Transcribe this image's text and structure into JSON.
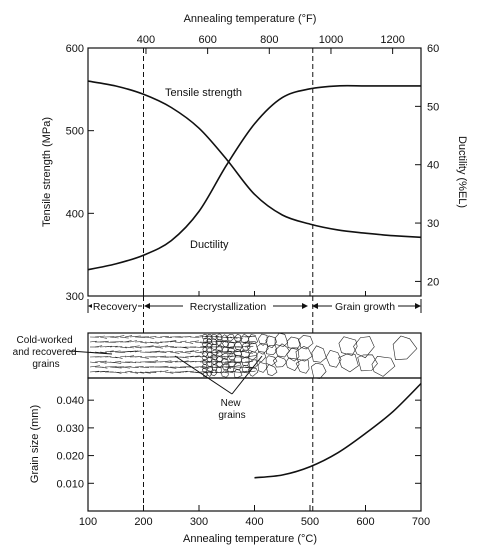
{
  "chart_data": {
    "type": "line",
    "title": "",
    "top_axis": {
      "label": "Annealing temperature (°F)",
      "ticks": [
        400,
        600,
        800,
        1000,
        1200
      ]
    },
    "bottom_axis": {
      "label": "Annealing temperature (°C)",
      "range": [
        100,
        700
      ],
      "ticks": [
        100,
        200,
        300,
        400,
        500,
        600,
        700
      ]
    },
    "upper_left_axis": {
      "label": "Tensile strength (MPa)",
      "range": [
        300,
        600
      ],
      "ticks": [
        300,
        400,
        500,
        600
      ]
    },
    "upper_right_axis": {
      "label": "Ductility (%EL)",
      "range": [
        17.5,
        60
      ],
      "ticks": [
        20,
        30,
        40,
        50,
        60
      ]
    },
    "lower_left_axis": {
      "label": "Grain size (mm)",
      "range": [
        0,
        0.048
      ],
      "ticks": [
        "0.010",
        "0.020",
        "0.030",
        "0.040"
      ]
    },
    "series": [
      {
        "name": "Tensile strength",
        "axis": "upper_left",
        "x": [
          100,
          150,
          200,
          250,
          300,
          350,
          400,
          450,
          500,
          550,
          600,
          650,
          700
        ],
        "y": [
          560,
          554,
          544,
          528,
          503,
          465,
          423,
          398,
          387,
          380,
          376,
          373,
          371
        ]
      },
      {
        "name": "Ductility",
        "axis": "upper_right",
        "x": [
          100,
          150,
          200,
          250,
          300,
          350,
          400,
          450,
          500,
          550,
          600,
          650,
          700
        ],
        "y": [
          22,
          23,
          24.5,
          27,
          32,
          40,
          47,
          51.5,
          53,
          53.5,
          53.5,
          53.5,
          53.5
        ]
      },
      {
        "name": "Grain size",
        "axis": "lower_left",
        "x": [
          400,
          450,
          500,
          550,
          600,
          650,
          700
        ],
        "y": [
          0.012,
          0.013,
          0.016,
          0.021,
          0.028,
          0.036,
          0.046
        ]
      }
    ],
    "stage_boundaries": [
      200,
      505
    ],
    "stages": [
      "Recovery",
      "Recrystallization",
      "Grain growth"
    ],
    "annotations": {
      "cold_worked": "Cold-worked and recovered grains",
      "new_grains": "New grains"
    }
  }
}
